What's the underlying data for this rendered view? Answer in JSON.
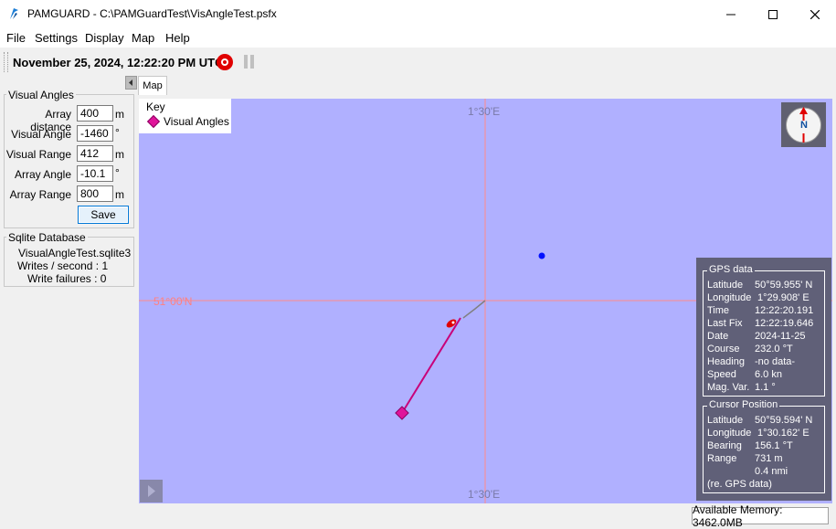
{
  "window": {
    "title": "PAMGUARD - C:\\PAMGuardTest\\VisAngleTest.psfx",
    "minimize_icon": "minimize-icon",
    "maximize_icon": "maximize-icon",
    "close_icon": "close-icon"
  },
  "menu": {
    "items": [
      {
        "label": "File"
      },
      {
        "label": "Settings"
      },
      {
        "label": "Display"
      },
      {
        "label": "Map"
      },
      {
        "label": "Help"
      }
    ]
  },
  "toolbar": {
    "datetime": "November 25, 2024, 12:22:20 PM UTC",
    "record_icon": "record-icon",
    "pause_icon": "pause-icon"
  },
  "visual_angles": {
    "title": "Visual Angles",
    "fields": [
      {
        "label": "Array distance",
        "value": "400",
        "unit": "m"
      },
      {
        "label": "Visual Angle",
        "value": "-1460",
        "unit": "°"
      },
      {
        "label": "Visual Range",
        "value": "412",
        "unit": "m"
      },
      {
        "label": "Array Angle",
        "value": "-10.1",
        "unit": "°"
      },
      {
        "label": "Array Range",
        "value": "800",
        "unit": "m"
      }
    ],
    "save_label": "Save"
  },
  "sqlite": {
    "title": "Sqlite Database",
    "filename": "VisualAngleTest.sqlite3",
    "writes": "Writes / second : 1",
    "failures": "Write failures : 0"
  },
  "map": {
    "tab_label": "Map",
    "key_title": "Key",
    "key_item": "Visual Angles",
    "key_color": "#e0149a",
    "lon_top": "1°30'E",
    "lon_bottom": "1°30'E",
    "lat_left": "51°00'N",
    "compass_letter": "N",
    "background_color": "#b0b0ff",
    "grid_color": "#ff8080",
    "track_color": "#c8007a"
  },
  "gps": {
    "title": "GPS data",
    "rows": [
      {
        "label": "Latitude",
        "value": "50°59.955' N"
      },
      {
        "label": "Longitude",
        "value": "1°29.908' E"
      },
      {
        "label": "Time",
        "value": "12:22:20.191"
      },
      {
        "label": "Last Fix",
        "value": "12:22:19.646"
      },
      {
        "label": "Date",
        "value": "2024-11-25"
      },
      {
        "label": "Course",
        "value": "232.0 °T"
      },
      {
        "label": "Heading",
        "value": "-no data-"
      },
      {
        "label": "Speed",
        "value": "6.0 kn"
      },
      {
        "label": "Mag. Var.",
        "value": "1.1 °"
      }
    ]
  },
  "cursor": {
    "title": "Cursor Position",
    "rows": [
      {
        "label": "Latitude",
        "value": "50°59.594' N"
      },
      {
        "label": "Longitude",
        "value": "1°30.162' E"
      },
      {
        "label": "Bearing",
        "value": "156.1 °T"
      },
      {
        "label": "Range",
        "value": "731 m"
      },
      {
        "label": "",
        "value": "0.4 nmi"
      }
    ],
    "footer": "(re. GPS data)"
  },
  "status": {
    "memory": "Available Memory: 3462.0MB"
  }
}
